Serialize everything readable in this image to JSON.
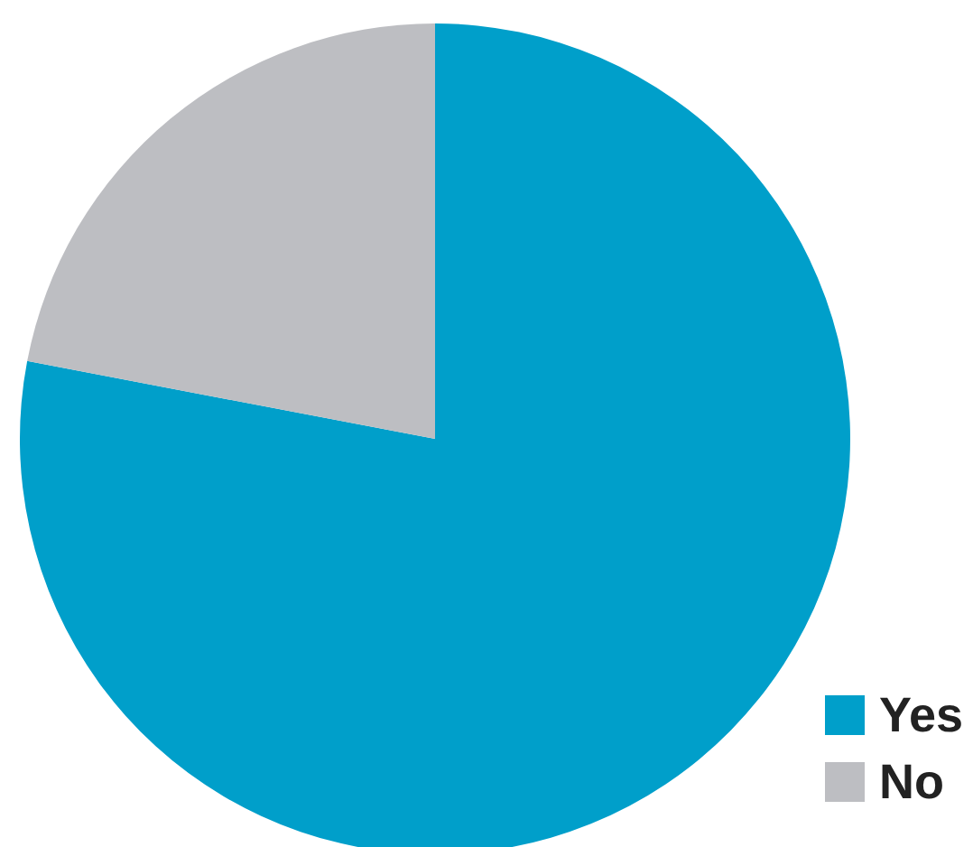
{
  "chart_data": {
    "type": "pie",
    "categories": [
      "Yes",
      "No"
    ],
    "values": [
      78,
      22
    ],
    "colors": [
      "#009fca",
      "#bdbec2"
    ],
    "legend": "bottom right"
  }
}
